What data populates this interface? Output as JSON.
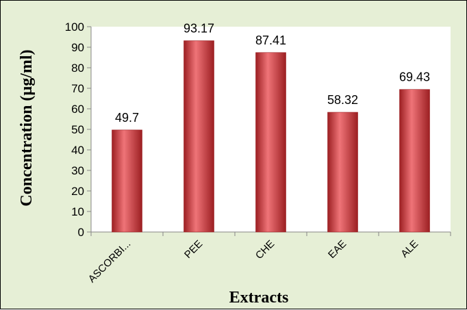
{
  "chart_data": {
    "type": "bar",
    "categories": [
      "ASCORBI...",
      "PEE",
      "CHE",
      "EAE",
      "ALE"
    ],
    "values": [
      49.7,
      93.17,
      87.41,
      58.32,
      69.43
    ],
    "data_labels": [
      "49.7",
      "93.17",
      "87.41",
      "58.32",
      "69.43"
    ],
    "xlabel": "Extracts",
    "ylabel": "Concentration (µg/ml)",
    "ylim": [
      0,
      100
    ],
    "yticks": [
      0,
      10,
      20,
      30,
      40,
      50,
      60,
      70,
      80,
      90,
      100
    ],
    "grid": false,
    "legend": "none",
    "colors": {
      "bar": "#d63a3e",
      "bar_dark": "#9c1f22",
      "bar_light": "#ef7478",
      "plot_background": "#ffffff",
      "chart_background": "#e6efd6",
      "axis": "#868686"
    }
  }
}
